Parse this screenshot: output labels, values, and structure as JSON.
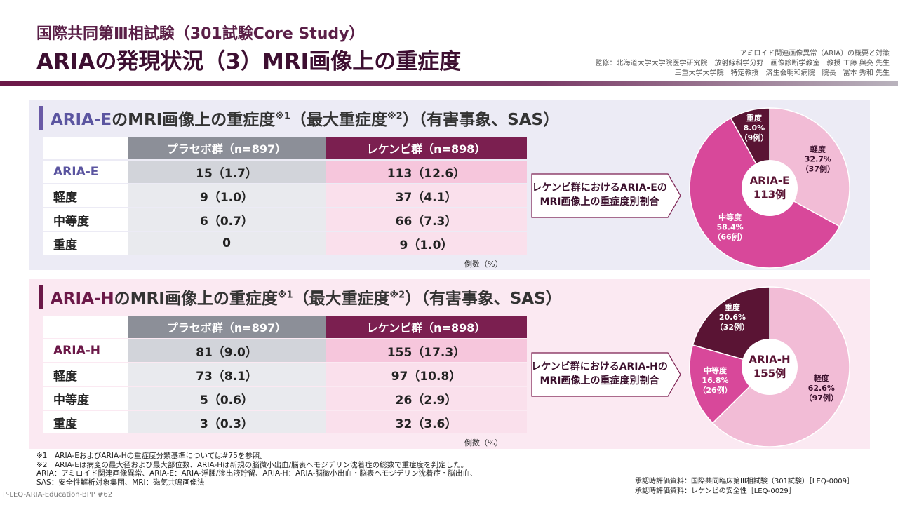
{
  "header": {
    "subtitle": "国際共同第Ⅲ相試験（301試験Core Study）",
    "title": "ARIAの発現状況（3）MRI画像上の重症度",
    "credits": [
      "アミロイド関連画像異常（ARIA）の概要と対策",
      "監修：北海道大学大学院医学研究院　放射線科学分野　画像診断学教室　教授 工藤 與亮 先生",
      "三重大学大学院　特定教授　済生会明和病院　院長　冨本 秀和 先生"
    ]
  },
  "sections": [
    {
      "heading": {
        "lead": "ARIA-E",
        "text": "のMRI画像上の重症度",
        "note1": "※1",
        "text2": "（最大重症度",
        "note2": "※2",
        "text3": "）（有害事象、SAS）"
      },
      "table": {
        "columns": [
          "プラセボ群（n=897）",
          "レケンビ群（n=898）"
        ],
        "rows": [
          {
            "label": "ARIA-E",
            "cells": [
              "15（1.7）",
              "113（12.6）"
            ]
          },
          {
            "label": "軽度",
            "cells": [
              "9（1.0）",
              "37（4.1）"
            ]
          },
          {
            "label": "中等度",
            "cells": [
              "6（0.7）",
              "66（7.3）"
            ]
          },
          {
            "label": "重度",
            "cells": [
              "0",
              "9（1.0）"
            ]
          }
        ]
      },
      "unit": "例数（%）",
      "callout": [
        "レケンビ群におけるARIA-Eの",
        "MRI画像上の重症度別割合"
      ]
    },
    {
      "heading": {
        "lead": "ARIA-H",
        "text": "のMRI画像上の重症度",
        "note1": "※1",
        "text2": "（最大重症度",
        "note2": "※2",
        "text3": "）（有害事象、SAS）"
      },
      "table": {
        "columns": [
          "プラセボ群（n=897）",
          "レケンビ群（n=898）"
        ],
        "rows": [
          {
            "label": "ARIA-H",
            "cells": [
              "81（9.0）",
              "155（17.3）"
            ]
          },
          {
            "label": "軽度",
            "cells": [
              "73（8.1）",
              "97（10.8）"
            ]
          },
          {
            "label": "中等度",
            "cells": [
              "5（0.6）",
              "26（2.9）"
            ]
          },
          {
            "label": "重度",
            "cells": [
              "3（0.3）",
              "32（3.6）"
            ]
          }
        ]
      },
      "unit": "例数（%）",
      "callout": [
        "レケンビ群におけるARIA-Hの",
        "MRI画像上の重症度別割合"
      ]
    }
  ],
  "chart_data": [
    {
      "type": "pie",
      "center": [
        "ARIA-E",
        "113例"
      ],
      "categories": [
        "軽度",
        "中等度",
        "重度"
      ],
      "values": [
        32.7,
        58.4,
        8.0
      ],
      "value_labels": [
        "32.7%",
        "58.4%",
        "8.0%"
      ],
      "counts": [
        37,
        66,
        9
      ],
      "count_labels": [
        "（37例）",
        "（66例）",
        "（9例）"
      ],
      "colors": [
        "#f2bcd6",
        "#d8489a",
        "#5a1434"
      ]
    },
    {
      "type": "pie",
      "center": [
        "ARIA-H",
        "155例"
      ],
      "categories": [
        "軽度",
        "中等度",
        "重度"
      ],
      "values": [
        62.6,
        16.8,
        20.6
      ],
      "value_labels": [
        "62.6%",
        "16.8%",
        "20.6%"
      ],
      "counts": [
        97,
        26,
        32
      ],
      "count_labels": [
        "（97例）",
        "（26例）",
        "（32例）"
      ],
      "colors": [
        "#f2bcd6",
        "#d8489a",
        "#5a1434"
      ]
    }
  ],
  "footnotes": [
    "※1　ARIA-EおよびARIA-Hの重症度分類基準については#75を参照。",
    "※2　ARIA-Eは病変の最大径および最大部位数、ARIA-Hは新規の脳微小出血/脳表ヘモジデリン沈着症の総数で重症度を判定した。",
    "ARIA：アミロイド関連画像異常、ARIA-E：ARIA-浮腫/滲出液貯留、ARIA-H：ARIA-脳微小出血・脳表ヘモジデリン沈着症・脳出血、",
    "SAS：安全性解析対象集団、MRI：磁気共鳴画像法"
  ],
  "code": "P-LEQ-ARIA-Education-BPP #62",
  "sources": [
    "承認時評価資料：国際共同臨床第III相試験（301試験）［LEQ-0009］",
    "承認時評価資料：レケンビの安全性［LEQ-0029］"
  ]
}
